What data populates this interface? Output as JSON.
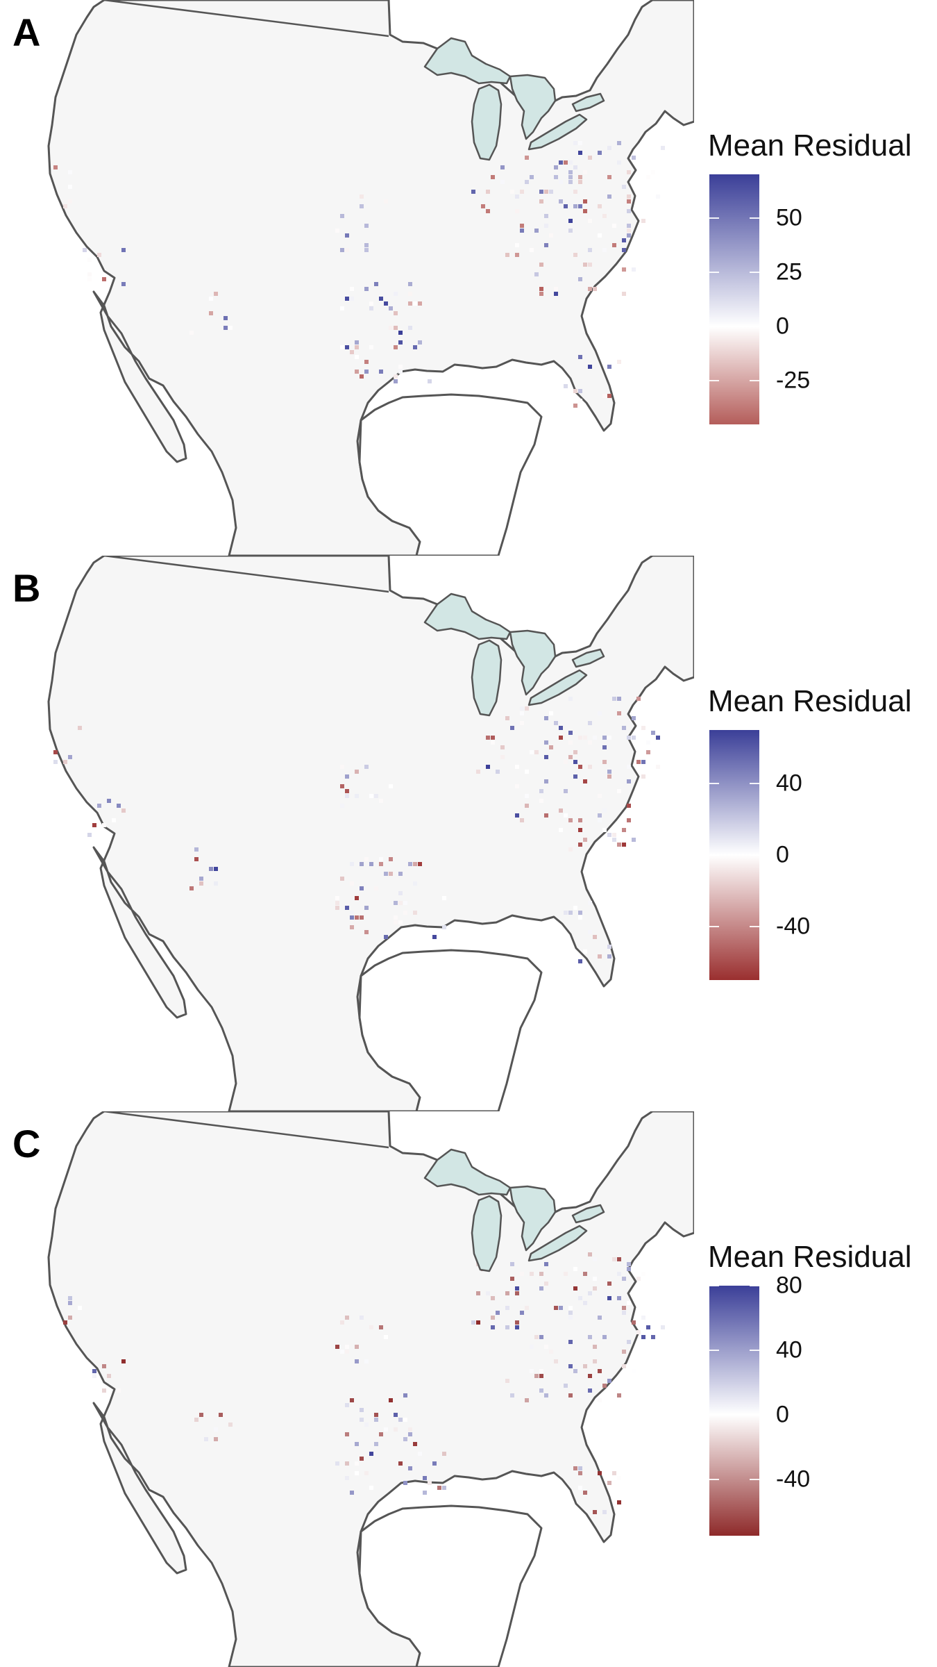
{
  "panels": [
    {
      "letter": "A",
      "legend": {
        "title": "Mean Residual",
        "min": -45,
        "max": 70,
        "ticks": [
          {
            "value": 50,
            "label": "50"
          },
          {
            "value": 25,
            "label": "25"
          },
          {
            "value": 0,
            "label": "0"
          },
          {
            "value": -25,
            "label": "-25"
          }
        ],
        "low_color": "#b45d5a",
        "high_color": "#3b3f98"
      }
    },
    {
      "letter": "B",
      "legend": {
        "title": "Mean Residual",
        "min": -70,
        "max": 70,
        "ticks": [
          {
            "value": 40,
            "label": "40"
          },
          {
            "value": 0,
            "label": "0"
          },
          {
            "value": -40,
            "label": "-40"
          }
        ],
        "low_color": "#9a2f2f",
        "high_color": "#3b3f98"
      }
    },
    {
      "letter": "C",
      "legend": {
        "title": "Mean Residual",
        "min": -75,
        "max": 80,
        "ticks": [
          {
            "value": 80,
            "label": "80"
          },
          {
            "value": 40,
            "label": "40"
          },
          {
            "value": 0,
            "label": "0"
          },
          {
            "value": -40,
            "label": "-40"
          }
        ],
        "low_color": "#8e2a2a",
        "high_color": "#3b3f98"
      }
    }
  ],
  "colors": {
    "land": "#f6f6f6",
    "border": "#555555",
    "lake": "#d2e6e4",
    "mid": "#ffffff"
  }
}
